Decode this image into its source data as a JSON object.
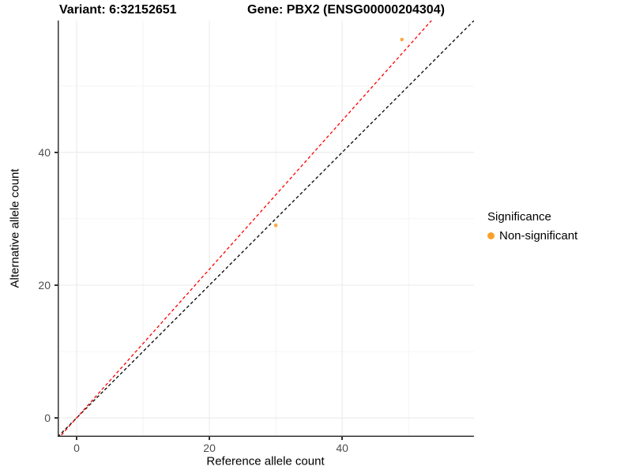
{
  "figure": {
    "title_variant": "Variant: 6:32152651",
    "title_gene": "Gene: PBX2 (ENSG00000204304)"
  },
  "axes": {
    "x_title": "Reference allele count",
    "y_title": "Alternative allele count"
  },
  "legend": {
    "title": "Significance",
    "items": [
      {
        "label": "Non-significant",
        "color": "#F7A22E"
      }
    ]
  },
  "colors": {
    "background": "#FFFFFF",
    "grid_major": "#ECECEC",
    "grid_minor": "#F4F4F4",
    "axis_line": "#333333",
    "tick_label": "#4D4D4D",
    "point_orange": "#F7A22E",
    "identity_line": "#000000",
    "ratio_line": "#FF0000"
  },
  "chart_data": {
    "type": "scatter",
    "title": "Variant: 6:32152651 — Gene: PBX2 (ENSG00000204304)",
    "xlabel": "Reference allele count",
    "ylabel": "Alternative allele count",
    "xlim": [
      -2.86,
      59.86
    ],
    "ylim": [
      -2.86,
      59.86
    ],
    "x_breaks": [
      0,
      20,
      40
    ],
    "y_breaks": [
      0,
      20,
      40
    ],
    "x_minor_breaks": [
      10,
      30,
      50
    ],
    "y_minor_breaks": [
      10,
      30,
      50
    ],
    "grid": true,
    "legend_position": "right",
    "legend_title": "Significance",
    "series": [
      {
        "name": "Non-significant",
        "color": "#F7A22E",
        "points": [
          {
            "x": 30,
            "y": 29
          },
          {
            "x": 49,
            "y": 57
          }
        ]
      }
    ],
    "reference_lines": [
      {
        "name": "identity",
        "slope": 1.0,
        "intercept": 0,
        "color": "#000000",
        "linetype": "dashed"
      },
      {
        "name": "alt-ref-ratio",
        "slope": 1.12,
        "intercept": 0,
        "color": "#FF0000",
        "linetype": "dashed"
      }
    ]
  }
}
